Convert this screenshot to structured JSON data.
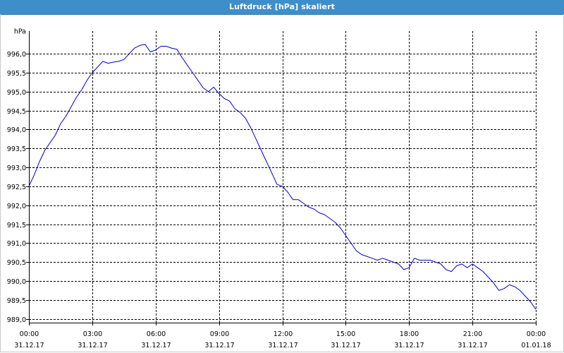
{
  "window": {
    "title": "Luftdruck [hPa] skaliert"
  },
  "chart_data": {
    "type": "line",
    "title": "Luftdruck [hPa] skaliert",
    "unit_label": "hPa",
    "xlabel": "",
    "ylabel": "hPa",
    "ylim": [
      988.9,
      996.6
    ],
    "xlim_hours": [
      0,
      24
    ],
    "y_ticks": [
      "989,0",
      "989,5",
      "990,0",
      "990,5",
      "991,0",
      "991,5",
      "992,0",
      "992,5",
      "993,0",
      "993,5",
      "994,0",
      "994,5",
      "995,0",
      "995,5",
      "996,0"
    ],
    "x_ticks": [
      {
        "time": "00:00",
        "date": "31.12.17"
      },
      {
        "time": "03:00",
        "date": "31.12.17"
      },
      {
        "time": "06:00",
        "date": "31.12.17"
      },
      {
        "time": "09:00",
        "date": "31.12.17"
      },
      {
        "time": "12:00",
        "date": "31.12.17"
      },
      {
        "time": "15:00",
        "date": "31.12.17"
      },
      {
        "time": "18:00",
        "date": "31.12.17"
      },
      {
        "time": "21:00",
        "date": "31.12.17"
      },
      {
        "time": "00:00",
        "date": "01.01.18"
      }
    ],
    "grid": true,
    "series": [
      {
        "color": "#0000cc",
        "x_hours": [
          0,
          0.25,
          0.5,
          0.75,
          1.0,
          1.25,
          1.5,
          1.75,
          2.0,
          2.25,
          2.5,
          2.75,
          3.0,
          3.25,
          3.5,
          3.75,
          4.0,
          4.25,
          4.5,
          4.75,
          5.0,
          5.25,
          5.5,
          5.75,
          6.0,
          6.25,
          6.5,
          6.75,
          7.0,
          7.25,
          7.5,
          7.75,
          8.0,
          8.25,
          8.5,
          8.75,
          9.0,
          9.25,
          9.5,
          9.75,
          10.0,
          10.25,
          10.5,
          10.75,
          11.0,
          11.25,
          11.5,
          11.75,
          12.0,
          12.25,
          12.5,
          12.75,
          13.0,
          13.25,
          13.5,
          13.75,
          14.0,
          14.25,
          14.5,
          14.75,
          15.0,
          15.25,
          15.5,
          15.75,
          16.0,
          16.25,
          16.5,
          16.75,
          17.0,
          17.25,
          17.5,
          17.75,
          18.0,
          18.25,
          18.5,
          18.75,
          19.0,
          19.25,
          19.5,
          19.75,
          20.0,
          20.25,
          20.5,
          20.75,
          21.0,
          21.25,
          21.5,
          21.75,
          22.0,
          22.25,
          22.5,
          22.75,
          23.0,
          23.25,
          23.5,
          23.75,
          24.0
        ],
        "values": [
          992.5,
          992.8,
          993.15,
          993.45,
          993.65,
          993.85,
          994.15,
          994.35,
          994.6,
          994.85,
          995.05,
          995.3,
          995.5,
          995.65,
          995.8,
          995.75,
          995.78,
          995.8,
          995.85,
          996.0,
          996.15,
          996.22,
          996.25,
          996.05,
          996.1,
          996.2,
          996.2,
          996.15,
          996.12,
          995.9,
          995.7,
          995.5,
          995.3,
          995.1,
          995.0,
          995.12,
          994.95,
          994.82,
          994.75,
          994.55,
          994.45,
          994.3,
          994.05,
          993.75,
          993.45,
          993.15,
          992.85,
          992.55,
          992.5,
          992.35,
          992.15,
          992.15,
          992.05,
          991.95,
          991.9,
          991.8,
          991.75,
          991.65,
          991.55,
          991.4,
          991.2,
          991.0,
          990.8,
          990.7,
          990.65,
          990.6,
          990.55,
          990.6,
          990.55,
          990.5,
          990.45,
          990.3,
          990.35,
          990.6,
          990.55,
          990.55,
          990.55,
          990.5,
          990.45,
          990.3,
          990.25,
          990.4,
          990.45,
          990.35,
          990.45,
          990.35,
          990.25,
          990.1,
          989.95,
          989.75,
          989.8,
          989.9,
          989.85,
          989.75,
          989.6,
          989.45,
          989.25
        ]
      }
    ]
  }
}
